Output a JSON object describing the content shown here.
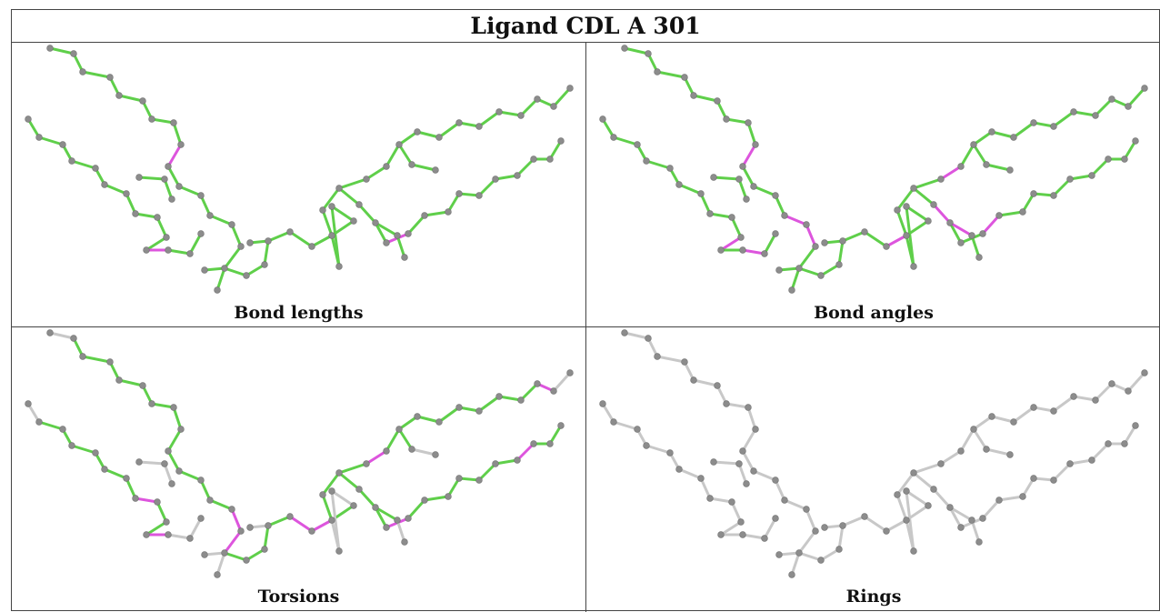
{
  "title": "Ligand CDL A 301",
  "panels": [
    {
      "caption": "Bond lengths"
    },
    {
      "caption": "Bond angles"
    },
    {
      "caption": "Torsions"
    },
    {
      "caption": "Rings"
    }
  ],
  "colors": {
    "ok_bond": "#5fcf4a",
    "outlier_bond": "#dd55dd",
    "untested_bond": "#c8c8c8",
    "atom": "#8c8c8c",
    "border": "#444444"
  }
}
